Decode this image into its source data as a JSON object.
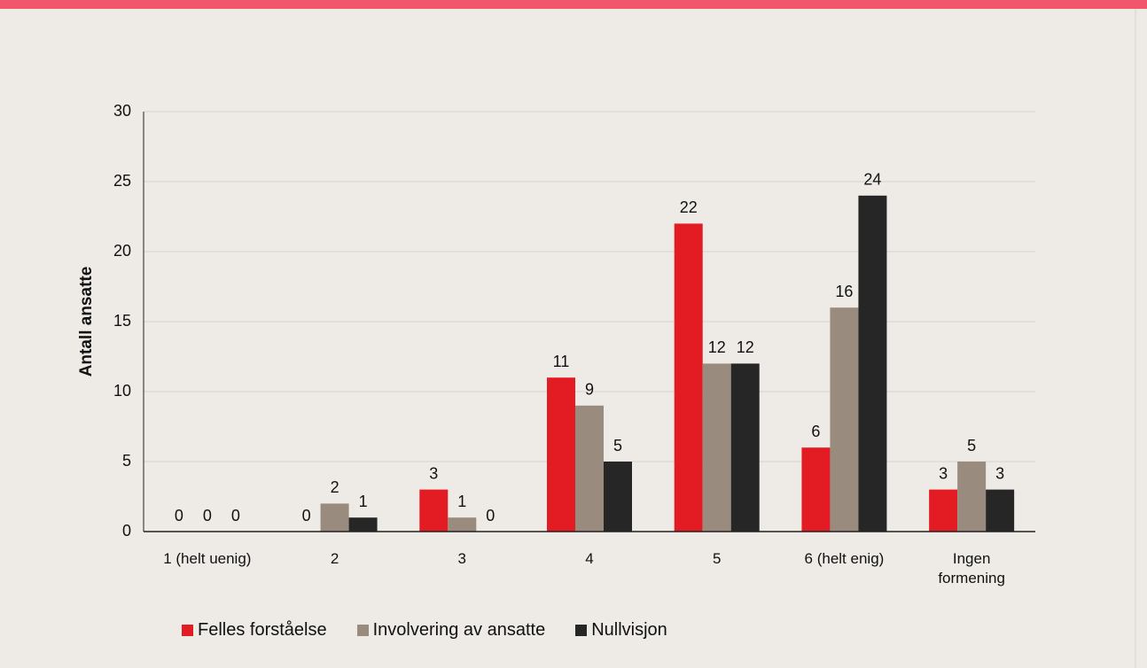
{
  "chart_data": {
    "type": "bar",
    "y_label": "Antall ansatte",
    "categories": [
      "1 (helt uenig)",
      "2",
      "3",
      "4",
      "5",
      "6 (helt enig)",
      "Ingen formening"
    ],
    "series": [
      {
        "name": "Felles forståelse",
        "color": "#e31b23",
        "values": [
          0,
          0,
          3,
          11,
          22,
          6,
          3
        ]
      },
      {
        "name": "Involvering av ansatte",
        "color": "#9a8b7f",
        "values": [
          0,
          2,
          1,
          9,
          12,
          16,
          5
        ]
      },
      {
        "name": "Nullvisjon",
        "color": "#262626",
        "values": [
          0,
          1,
          0,
          5,
          12,
          24,
          3
        ]
      }
    ],
    "ylim": [
      0,
      30
    ],
    "yticks": [
      0,
      5,
      10,
      15,
      20,
      25,
      30
    ],
    "grid": true,
    "legend": "bottom"
  }
}
